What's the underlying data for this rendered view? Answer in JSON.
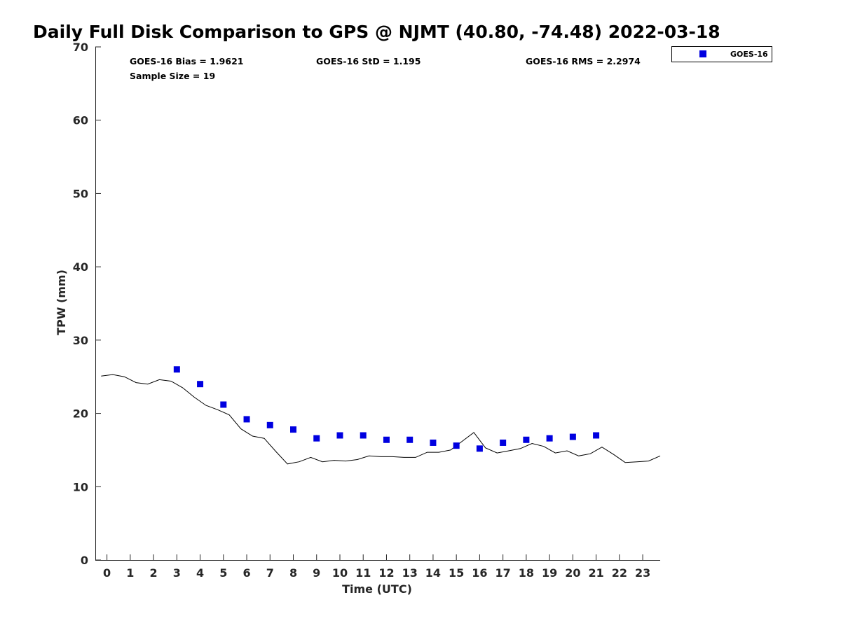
{
  "chart_data": {
    "type": "scatter",
    "title": "Daily Full Disk Comparison to GPS @ NJMT (40.80, -74.48) 2022-03-18",
    "xlabel": "Time (UTC)",
    "ylabel": "TPW (mm)",
    "xlim": [
      -0.5,
      23.75
    ],
    "ylim": [
      0,
      70
    ],
    "xticks": [
      0,
      1,
      2,
      3,
      4,
      5,
      6,
      7,
      8,
      9,
      10,
      11,
      12,
      13,
      14,
      15,
      16,
      17,
      18,
      19,
      20,
      21,
      22,
      23
    ],
    "yticks": [
      0,
      10,
      20,
      30,
      40,
      50,
      60,
      70
    ],
    "grid": false,
    "legend_position": "top-right-outside",
    "stats": {
      "bias": "GOES-16 Bias = 1.9621",
      "std": "GOES-16 StD = 1.195",
      "rms": "GOES-16 RMS = 2.2974",
      "sample": "Sample Size = 19"
    },
    "series": [
      {
        "name": "GOES-16",
        "kind": "scatter",
        "marker": "square",
        "color": "#0000e0",
        "x": [
          3,
          4,
          5,
          6,
          7,
          8,
          9,
          10,
          11,
          12,
          13,
          14,
          15,
          16,
          17,
          18,
          19,
          20,
          21
        ],
        "y": [
          26.0,
          24.0,
          21.2,
          19.2,
          18.4,
          17.8,
          16.6,
          17.0,
          17.0,
          16.4,
          16.4,
          16.0,
          15.6,
          15.2,
          16.0,
          16.4,
          16.6,
          16.8,
          17.0
        ]
      },
      {
        "kind": "line",
        "color": "#000000",
        "x": [
          -0.25,
          0.25,
          0.75,
          1.25,
          1.75,
          2.25,
          2.75,
          3.25,
          3.75,
          4.25,
          4.75,
          5.25,
          5.75,
          6.25,
          6.75,
          7.25,
          7.75,
          8.25,
          8.75,
          9.25,
          9.75,
          10.25,
          10.75,
          11.25,
          11.75,
          12.25,
          12.75,
          13.25,
          13.75,
          14.25,
          14.75,
          15.25,
          15.75,
          16.25,
          16.75,
          17.25,
          17.75,
          18.25,
          18.75,
          19.25,
          19.75,
          20.25,
          20.75,
          21.25,
          21.75,
          22.25,
          22.75,
          23.25,
          23.75
        ],
        "y": [
          25.1,
          25.3,
          25.0,
          24.2,
          24.0,
          24.6,
          24.4,
          23.5,
          22.2,
          21.1,
          20.5,
          19.8,
          17.9,
          16.9,
          16.6,
          14.8,
          13.1,
          13.4,
          14.0,
          13.4,
          13.6,
          13.5,
          13.7,
          14.2,
          14.1,
          14.1,
          14.0,
          14.0,
          14.7,
          14.7,
          15.0,
          16.2,
          17.4,
          15.3,
          14.6,
          14.9,
          15.2,
          15.9,
          15.5,
          14.6,
          14.9,
          14.2,
          14.5,
          15.4,
          14.4,
          13.3,
          13.4,
          13.5,
          14.2
        ]
      }
    ]
  }
}
